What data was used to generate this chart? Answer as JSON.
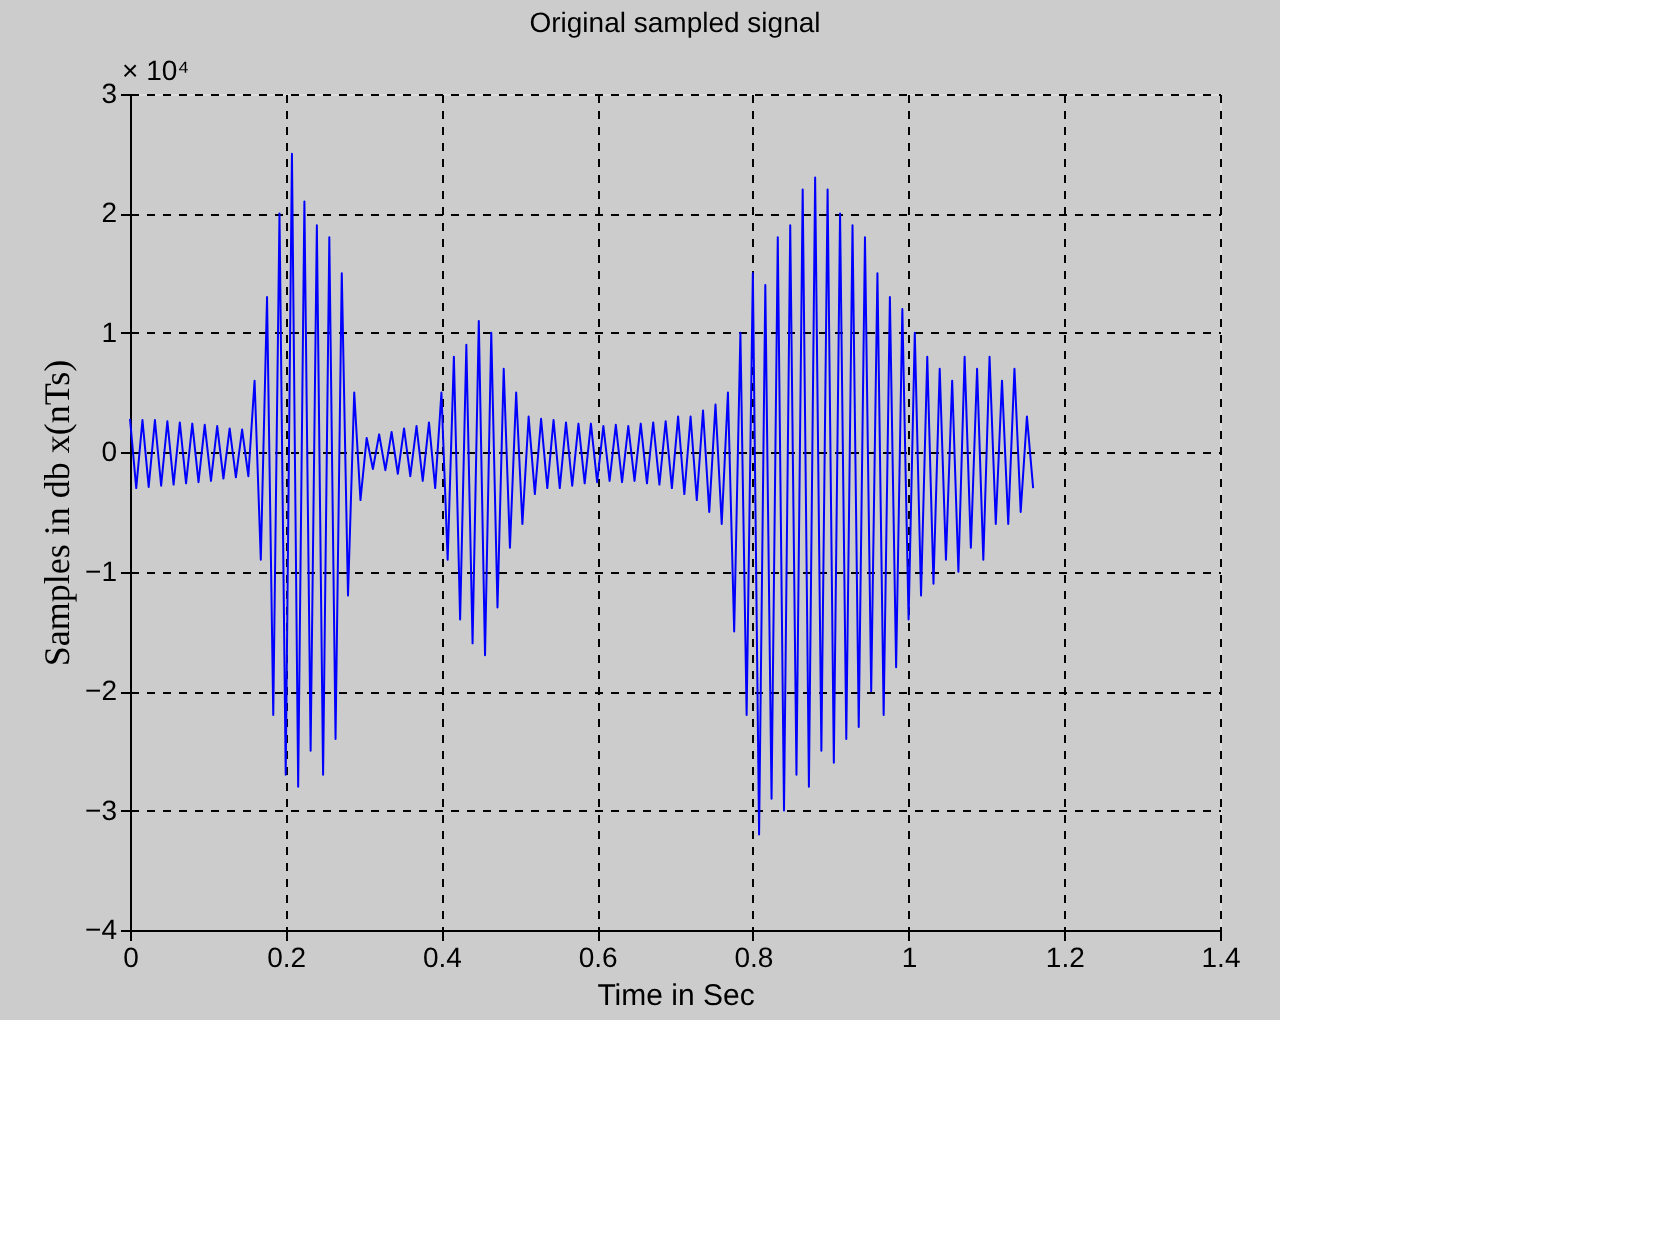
{
  "chart_data": {
    "type": "line",
    "title": "Original sampled signal",
    "xlabel": "Time in Sec",
    "ylabel": "Samples in db   x(nTs)",
    "annotations": [
      "× 10⁴"
    ],
    "x": [
      0,
      0.008,
      0.016,
      0.024,
      0.032,
      0.04,
      0.048,
      0.056,
      0.064,
      0.072,
      0.08,
      0.088,
      0.096,
      0.104,
      0.112,
      0.12,
      0.128,
      0.136,
      0.144,
      0.152,
      0.16,
      0.168,
      0.176,
      0.184,
      0.192,
      0.2,
      0.208,
      0.216,
      0.224,
      0.232,
      0.24,
      0.248,
      0.256,
      0.264,
      0.272,
      0.28,
      0.288,
      0.296,
      0.304,
      0.312,
      0.32,
      0.328,
      0.336,
      0.344,
      0.352,
      0.36,
      0.368,
      0.376,
      0.384,
      0.392,
      0.4,
      0.408,
      0.416,
      0.424,
      0.432,
      0.44,
      0.448,
      0.456,
      0.464,
      0.472,
      0.48,
      0.488,
      0.496,
      0.504,
      0.512,
      0.52,
      0.528,
      0.536,
      0.544,
      0.552,
      0.56,
      0.568,
      0.576,
      0.584,
      0.592,
      0.6,
      0.608,
      0.616,
      0.624,
      0.632,
      0.64,
      0.648,
      0.656,
      0.664,
      0.672,
      0.68,
      0.688,
      0.696,
      0.704,
      0.712,
      0.72,
      0.728,
      0.736,
      0.744,
      0.752,
      0.76,
      0.768,
      0.776,
      0.784,
      0.792,
      0.8,
      0.808,
      0.816,
      0.824,
      0.832,
      0.84,
      0.848,
      0.856,
      0.864,
      0.872,
      0.88,
      0.888,
      0.896,
      0.904,
      0.912,
      0.92,
      0.928,
      0.936,
      0.944,
      0.952,
      0.96,
      0.968,
      0.976,
      0.984,
      0.992,
      1.0,
      1.008,
      1.016,
      1.024,
      1.032,
      1.04,
      1.048,
      1.056,
      1.064,
      1.072,
      1.08,
      1.088,
      1.096,
      1.104,
      1.112,
      1.12,
      1.128,
      1.136,
      1.144,
      1.152,
      1.16
    ],
    "series": [
      {
        "color": "#0000ff",
        "values": [
          0.28,
          -0.3,
          0.27,
          -0.29,
          0.27,
          -0.28,
          0.26,
          -0.27,
          0.25,
          -0.26,
          0.24,
          -0.25,
          0.23,
          -0.24,
          0.22,
          -0.22,
          0.2,
          -0.21,
          0.19,
          -0.2,
          0.6,
          -0.9,
          1.3,
          -2.2,
          2.0,
          -2.7,
          2.5,
          -2.8,
          2.1,
          -2.5,
          1.9,
          -2.7,
          1.8,
          -2.4,
          1.5,
          -1.2,
          0.5,
          -0.4,
          0.12,
          -0.14,
          0.15,
          -0.15,
          0.17,
          -0.18,
          0.2,
          -0.2,
          0.22,
          -0.24,
          0.25,
          -0.3,
          0.5,
          -0.9,
          0.8,
          -1.4,
          0.9,
          -1.6,
          1.1,
          -1.7,
          1.0,
          -1.3,
          0.7,
          -0.8,
          0.5,
          -0.6,
          0.3,
          -0.35,
          0.28,
          -0.3,
          0.27,
          -0.3,
          0.25,
          -0.28,
          0.24,
          -0.26,
          0.24,
          -0.25,
          0.22,
          -0.24,
          0.23,
          -0.25,
          0.22,
          -0.24,
          0.24,
          -0.26,
          0.25,
          -0.27,
          0.26,
          -0.3,
          0.3,
          -0.35,
          0.3,
          -0.4,
          0.35,
          -0.5,
          0.4,
          -0.6,
          0.5,
          -1.5,
          1.0,
          -2.2,
          1.5,
          -3.2,
          1.4,
          -2.9,
          1.8,
          -3.0,
          1.9,
          -2.7,
          2.2,
          -2.8,
          2.3,
          -2.5,
          2.2,
          -2.6,
          2.0,
          -2.4,
          1.9,
          -2.3,
          1.8,
          -2.0,
          1.5,
          -2.2,
          1.3,
          -1.8,
          1.2,
          -1.4,
          1.0,
          -1.2,
          0.8,
          -1.1,
          0.7,
          -0.9,
          0.6,
          -1.0,
          0.8,
          -0.8,
          0.7,
          -0.9,
          0.8,
          -0.6,
          0.6,
          -0.6,
          0.7,
          -0.5,
          0.3,
          -0.3
        ]
      }
    ],
    "xlim": [
      0,
      1.4
    ],
    "xticks": [
      0,
      0.2,
      0.4,
      0.6,
      0.8,
      1,
      1.2,
      1.4
    ],
    "ylim": [
      -4,
      3
    ],
    "yticks": [
      -4,
      -3,
      -2,
      -1,
      0,
      1,
      2,
      3
    ],
    "grid": true,
    "line_style": "solid",
    "marker": "none",
    "legend": false
  }
}
